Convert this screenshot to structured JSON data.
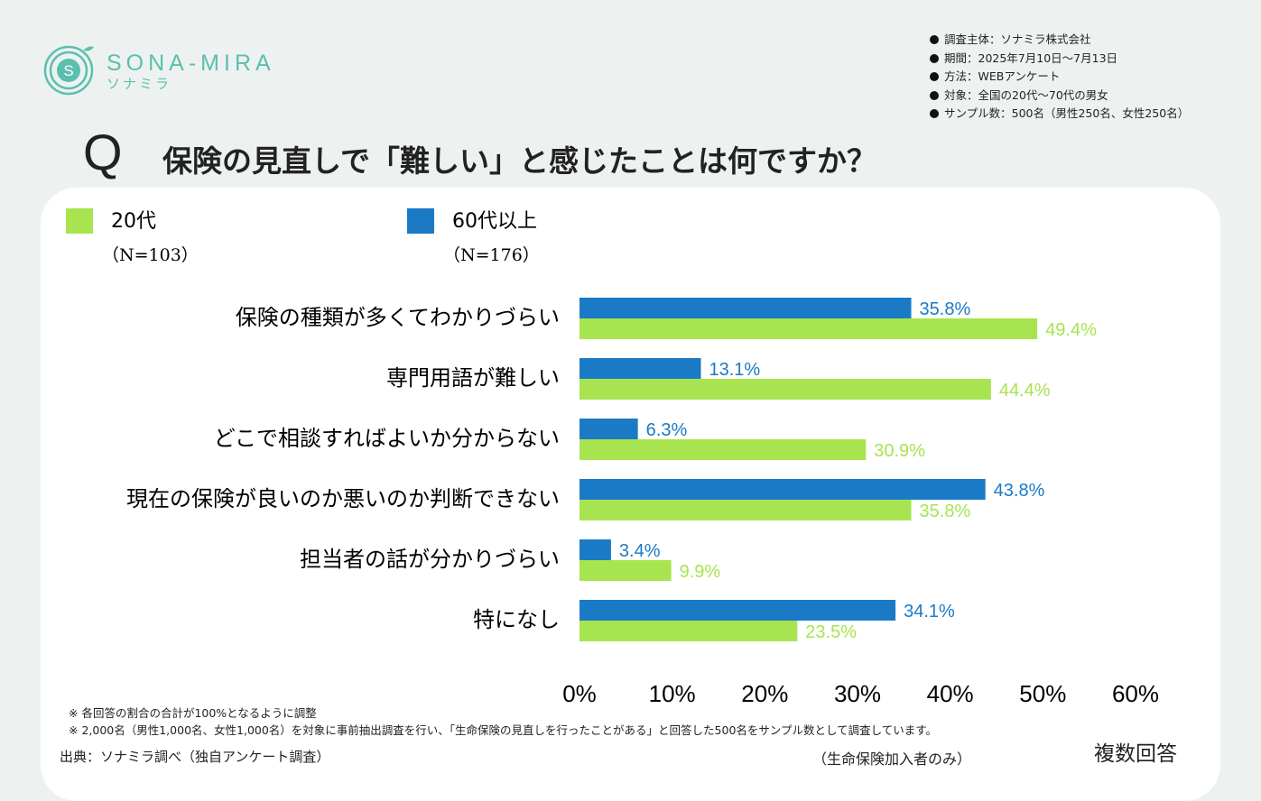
{
  "header": {
    "logo": "SONA-MIRA",
    "logo_kana": "ソナミラ",
    "survey_info": [
      "調査主体：ソナミラ株式会社",
      "期間：2025年7月10日～7月13日",
      "方法：WEBアンケート",
      "対象：全国の20代～70代の男女",
      "サンプル数：500名（男性250名、女性250名）"
    ],
    "question_mark": "Q",
    "title": "保険の見直しで「難しい」と感じたことは何ですか？"
  },
  "chart_data": {
    "type": "bar",
    "orientation": "horizontal",
    "categories": [
      "保険の種類が多くてわかりづらい",
      "専門用語が難しい",
      "どこで相談すればよいか分からない",
      "現在の保険が良いのか悪いのか判断できない",
      "担当者の話が分かりづらい",
      "特になし"
    ],
    "series": [
      {
        "name": "20代",
        "sample": "（N=103）",
        "color": "#a8e44f",
        "values": [
          49.4,
          44.4,
          30.9,
          35.8,
          9.9,
          23.5
        ],
        "value_labels": [
          "49.4%",
          "44.4%",
          "30.9%",
          "35.8%",
          "9.9%",
          "23.5%"
        ]
      },
      {
        "name": "60代以上",
        "sample": "（N=176）",
        "color": "#1a7ac6",
        "values": [
          35.8,
          13.1,
          6.3,
          43.8,
          3.4,
          34.1
        ],
        "value_labels": [
          "35.8%",
          "13.1%",
          "6.3%",
          "43.8%",
          "3.4%",
          "34.1%"
        ]
      }
    ],
    "xlim": [
      0,
      60
    ],
    "xticks": [
      {
        "value": 0,
        "label": "0%"
      },
      {
        "value": 10,
        "label": "10%"
      },
      {
        "value": 20,
        "label": "20%"
      },
      {
        "value": 30,
        "label": "30%"
      },
      {
        "value": 40,
        "label": "40%"
      },
      {
        "value": 50,
        "label": "50%"
      },
      {
        "value": 60,
        "label": "60%"
      }
    ],
    "grid": false,
    "annotation": "複数回答"
  },
  "footer": {
    "notes": [
      "※ 各回答の割合の合計が100%となるように調整",
      "※ 2,000名（男性1,000名、女性1,000名）を対象に事前抽出調査を行い、「生命保険の見直しを行ったことがある」と回答した500名をサンプル数として調査しています。"
    ],
    "source": "出典：ソナミラ調べ（独自アンケート調査）",
    "scope": "（生命保険加入者のみ）"
  }
}
